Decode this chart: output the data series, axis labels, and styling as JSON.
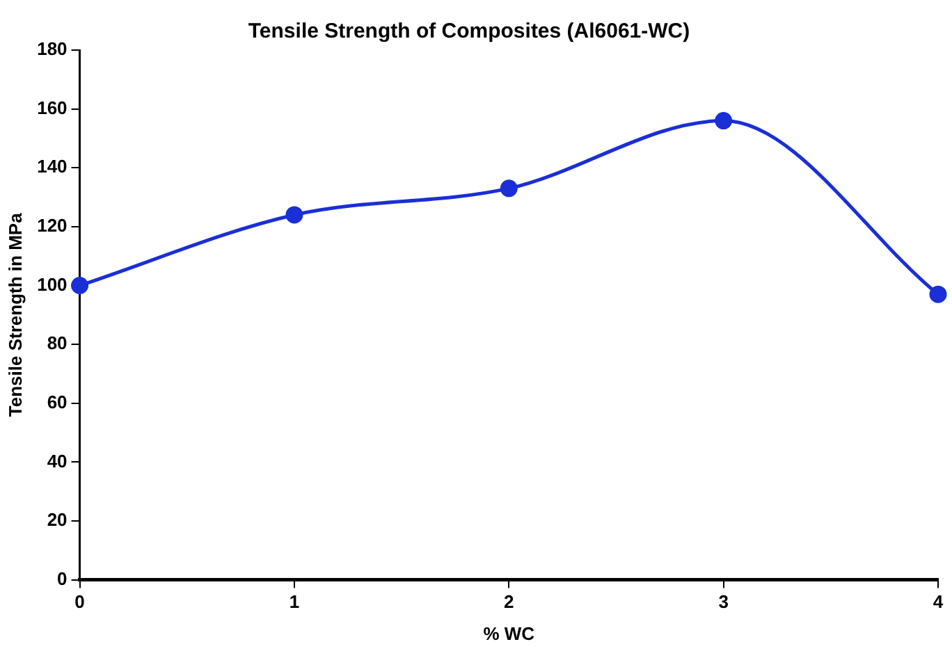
{
  "chart_data": {
    "type": "line",
    "title": "Tensile Strength of Composites (Al6061-WC)",
    "xlabel": "% WC",
    "ylabel": "Tensile Strength in MPa",
    "x": [
      0,
      1,
      2,
      3,
      4
    ],
    "series": [
      {
        "color": "#1a2fd6",
        "values": [
          100,
          124,
          133,
          156,
          97
        ]
      }
    ],
    "xlim": [
      0,
      4
    ],
    "xticks": [
      0,
      1,
      2,
      3,
      4
    ],
    "ylim": [
      0,
      180
    ],
    "yticks": [
      0,
      20,
      40,
      60,
      80,
      100,
      120,
      140,
      160,
      180
    ],
    "grid": false,
    "legend": false,
    "marker": "circle",
    "line_style": "solid"
  }
}
